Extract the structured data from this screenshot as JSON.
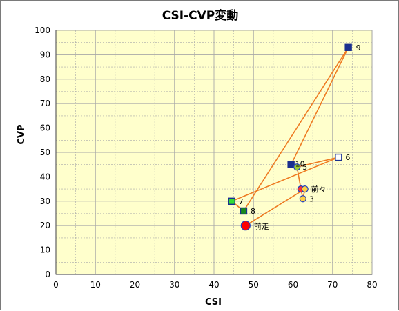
{
  "chart_data": {
    "type": "scatter",
    "title": "CSI-CVP変動",
    "xlabel": "CSI",
    "ylabel": "CVP",
    "xlim": [
      0,
      80
    ],
    "ylim": [
      0,
      100
    ],
    "x_ticks": [
      "0",
      "10",
      "20",
      "30",
      "40",
      "50",
      "60",
      "70",
      "80"
    ],
    "y_ticks": [
      "0",
      "10",
      "20",
      "30",
      "40",
      "50",
      "60",
      "70",
      "80",
      "90",
      "100"
    ],
    "grid": true,
    "plot_background": "#ffffcc",
    "grid_color": "#a8a8a8",
    "line_color": "#ee7b22",
    "points": [
      {
        "label": "前走",
        "x": 48.0,
        "y": 20.0,
        "marker": "circle",
        "fill": "#ff0000",
        "edge": "#2040c0",
        "big": true
      },
      {
        "label": "前々",
        "x": 63.0,
        "y": 35.0,
        "marker": "circle",
        "fill": "#ffd040",
        "edge": "#2040c0",
        "big": false
      },
      {
        "label": "3",
        "x": 62.5,
        "y": 31.0,
        "marker": "circle",
        "fill": "#ffd040",
        "edge": "#2040c0",
        "big": false
      },
      {
        "label": "",
        "x": 62.0,
        "y": 35.0,
        "marker": "circle",
        "fill": "#ff3030",
        "edge": "#2040c0",
        "big": false
      },
      {
        "label": "5",
        "x": 61.0,
        "y": 44.0,
        "marker": "circle",
        "fill": "#9acd32",
        "edge": "#2040c0",
        "big": false
      },
      {
        "label": "6",
        "x": 71.5,
        "y": 48.0,
        "marker": "square",
        "fill": "#ffffff",
        "edge": "#1a2f8f",
        "big": false
      },
      {
        "label": "7",
        "x": 44.5,
        "y": 30.0,
        "marker": "square",
        "fill": "#33dd33",
        "edge": "#1a2f8f",
        "big": false
      },
      {
        "label": "8",
        "x": 47.5,
        "y": 26.0,
        "marker": "square",
        "fill": "#1a8a1a",
        "edge": "#1a2f8f",
        "big": false
      },
      {
        "label": "9",
        "x": 74.0,
        "y": 93.0,
        "marker": "square",
        "fill": "#1a2f8f",
        "edge": "#1a2f8f",
        "big": false
      },
      {
        "label": "10",
        "x": 59.5,
        "y": 45.0,
        "marker": "square",
        "fill": "#1a2f8f",
        "edge": "#1a2f8f",
        "big": false
      }
    ],
    "path_order": [
      0,
      1,
      2,
      3,
      4,
      5,
      6,
      7,
      8,
      9
    ]
  }
}
